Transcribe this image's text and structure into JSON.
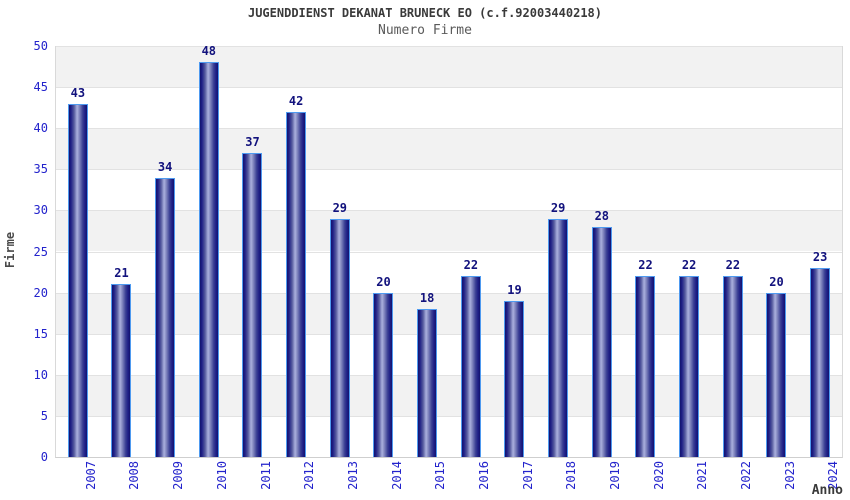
{
  "header": {
    "title": "JUGENDDIENST DEKANAT BRUNECK EO (c.f.92003440218)",
    "subtitle": "Numero Firme"
  },
  "chart_data": {
    "type": "bar",
    "title": "JUGENDDIENST DEKANAT BRUNECK EO (c.f.92003440218)",
    "subtitle": "Numero Firme",
    "categories": [
      "2007",
      "2008",
      "2009",
      "2010",
      "2011",
      "2012",
      "2013",
      "2014",
      "2015",
      "2016",
      "2017",
      "2018",
      "2019",
      "2020",
      "2021",
      "2022",
      "2023",
      "2024"
    ],
    "values": [
      43,
      21,
      34,
      48,
      37,
      42,
      29,
      20,
      18,
      22,
      19,
      29,
      28,
      22,
      22,
      22,
      20,
      23
    ],
    "xlabel": "Anno",
    "ylabel": "Firme",
    "ylim": [
      0,
      50
    ],
    "ytick_step": 5,
    "yticks": [
      0,
      5,
      10,
      15,
      20,
      25,
      30,
      35,
      40,
      45,
      50
    ],
    "legend": "none",
    "grid": "horizontal-bands-alternating",
    "bar_labels": "values shown above each bar"
  },
  "colors": {
    "bar_dark": "#14146e",
    "bar_mid": "#1d1d85",
    "bar_light": "#aab0dd",
    "bar_border": "#4e9af0",
    "tick_label": "#2323cc",
    "value_label": "#12127d",
    "band_gray": "#f2f2f2",
    "band_white": "#ffffff",
    "gridline": "#e2e2e2",
    "title_text": "#3a3a3a",
    "subtitle_text": "#5a5a5a",
    "background": "#ffffff"
  }
}
